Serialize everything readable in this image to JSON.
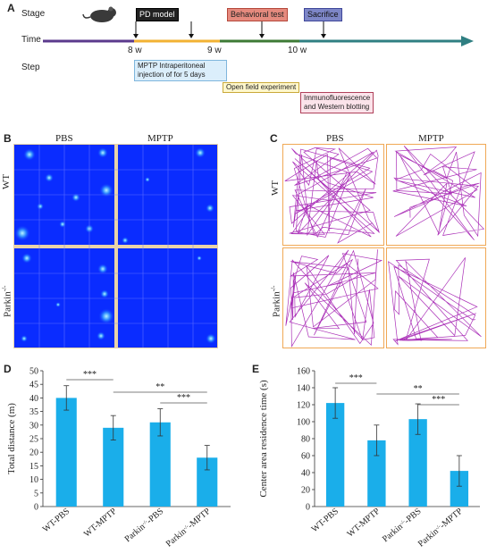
{
  "panels": {
    "a": "A",
    "b": "B",
    "c": "C",
    "d": "D",
    "e": "E"
  },
  "timeline": {
    "stage_label": "Stage",
    "time_label": "Time",
    "step_label": "Step",
    "weeks": [
      "8 w",
      "9 w",
      "10 w"
    ],
    "stages": [
      "PD model",
      "Behavioral test",
      "Sacrifice"
    ],
    "steps": [
      "MPTP  Intraperitoneal",
      "injection of  for 5 days",
      "Open field experiment",
      "Immunofluorescence",
      "and Western blotting"
    ],
    "colors": {
      "segment1": "#5b3a8c",
      "segment2": "#f2b233",
      "segment3": "#3d7a35",
      "segment4": "#2f7f82"
    }
  },
  "panel_b": {
    "col1": "PBS",
    "col2": "MPTP",
    "row1": "WT",
    "row2": "Parkin",
    "row2_sup": "-/-"
  },
  "panel_c": {
    "col1": "PBS",
    "col2": "MPTP",
    "row1": "WT",
    "row2": "Parkin",
    "row2_sup": "-/-"
  },
  "chart_data": [
    {
      "type": "bar",
      "categories": [
        "WT-PBS",
        "WT-MPTP",
        "Parkin-/--PBS",
        "Parkin-/--MPTP"
      ],
      "category_labels": [
        {
          "main": "WT-PBS",
          "sup": "",
          "tail": ""
        },
        {
          "main": "WT-MPTP",
          "sup": "",
          "tail": ""
        },
        {
          "main": "Parkin",
          "sup": "-/-",
          "tail": "-PBS"
        },
        {
          "main": "Parkin",
          "sup": "-/-",
          "tail": "-MPTP"
        }
      ],
      "values": [
        40,
        29,
        31,
        18
      ],
      "errors": [
        4.5,
        4.5,
        5,
        4.5
      ],
      "ylabel": "Total distance (m)",
      "ylim": [
        0,
        50
      ],
      "yticks": [
        "0",
        "5",
        "10",
        "15",
        "20",
        "25",
        "30",
        "35",
        "40",
        "45",
        "50"
      ],
      "significance": [
        {
          "from": 0,
          "to": 1,
          "label": "***"
        },
        {
          "from": 1,
          "to": 3,
          "label": "**"
        },
        {
          "from": 2,
          "to": 3,
          "label": "***"
        }
      ],
      "color": "#1aaeea"
    },
    {
      "type": "bar",
      "categories": [
        "WT-PBS",
        "WT-MPTP",
        "Parkin-/--PBS",
        "Parkin-/--MPTP"
      ],
      "category_labels": [
        {
          "main": "WT-PBS",
          "sup": "",
          "tail": ""
        },
        {
          "main": "WT-MPTP",
          "sup": "",
          "tail": ""
        },
        {
          "main": "Parkin",
          "sup": "-/-",
          "tail": "-PBS"
        },
        {
          "main": "Parkin",
          "sup": "-/-",
          "tail": "-MPTP"
        }
      ],
      "values": [
        122,
        78,
        103,
        42
      ],
      "errors": [
        18,
        18,
        18,
        18
      ],
      "ylabel": "Center area residence time (s)",
      "ylim": [
        0,
        160
      ],
      "yticks": [
        "0",
        "20",
        "40",
        "60",
        "80",
        "100",
        "120",
        "140",
        "160"
      ],
      "significance": [
        {
          "from": 0,
          "to": 1,
          "label": "***"
        },
        {
          "from": 1,
          "to": 3,
          "label": "**"
        },
        {
          "from": 2,
          "to": 3,
          "label": "***"
        }
      ],
      "color": "#1aaeea"
    }
  ]
}
